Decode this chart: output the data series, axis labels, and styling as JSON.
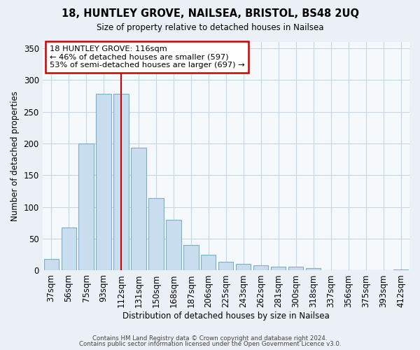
{
  "title1": "18, HUNTLEY GROVE, NAILSEA, BRISTOL, BS48 2UQ",
  "title2": "Size of property relative to detached houses in Nailsea",
  "xlabel": "Distribution of detached houses by size in Nailsea",
  "ylabel": "Number of detached properties",
  "bar_labels": [
    "37sqm",
    "56sqm",
    "75sqm",
    "93sqm",
    "112sqm",
    "131sqm",
    "150sqm",
    "168sqm",
    "187sqm",
    "206sqm",
    "225sqm",
    "243sqm",
    "262sqm",
    "281sqm",
    "300sqm",
    "318sqm",
    "337sqm",
    "356sqm",
    "375sqm",
    "393sqm",
    "412sqm"
  ],
  "bar_values": [
    18,
    68,
    200,
    278,
    278,
    193,
    114,
    80,
    40,
    25,
    14,
    10,
    8,
    6,
    6,
    4,
    1,
    1,
    0,
    0,
    2
  ],
  "bar_fill_color": "#c8dded",
  "bar_edge_color": "#7aafc8",
  "vline_x_index": 4,
  "vline_color": "#cc0000",
  "annotation_text": "18 HUNTLEY GROVE: 116sqm\n← 46% of detached houses are smaller (597)\n53% of semi-detached houses are larger (697) →",
  "annotation_box_color": "#ffffff",
  "annotation_edge_color": "#cc0000",
  "ylim": [
    0,
    360
  ],
  "yticks": [
    0,
    50,
    100,
    150,
    200,
    250,
    300,
    350
  ],
  "footer1": "Contains HM Land Registry data © Crown copyright and database right 2024.",
  "footer2": "Contains public sector information licensed under the Open Government Licence v3.0.",
  "bg_color": "#eaf0f6",
  "plot_bg_color": "#f5f9fc",
  "grid_color": "#c5d5e5"
}
